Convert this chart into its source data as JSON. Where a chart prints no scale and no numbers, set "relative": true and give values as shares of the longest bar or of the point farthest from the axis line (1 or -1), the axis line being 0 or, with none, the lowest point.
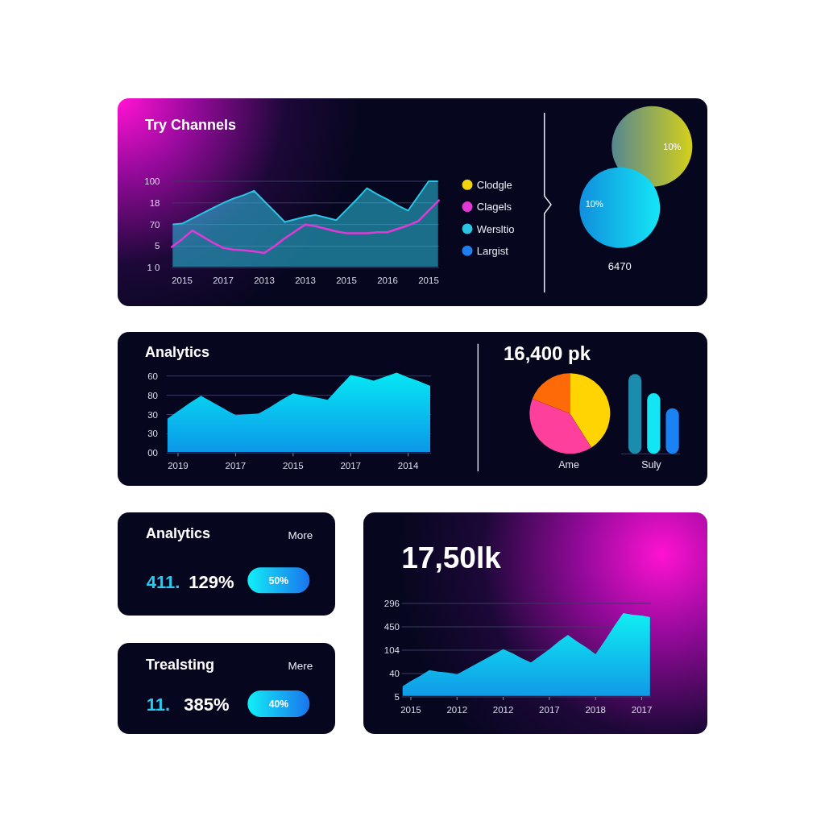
{
  "chart_data": [
    {
      "type": "area",
      "title": "Try Channels",
      "relative": true,
      "categories": [
        null,
        "2015",
        null,
        null,
        null,
        "2017",
        null,
        null,
        null,
        "2013",
        null,
        null,
        null,
        "2013",
        null,
        null,
        null,
        "2015",
        null,
        null,
        null,
        "2016",
        null,
        null,
        null,
        "2015",
        null
      ],
      "annotations": [
        "100",
        "18",
        "70",
        "5",
        "1 0"
      ],
      "legend": "right",
      "series": [
        {
          "name": "Clodgle",
          "color": "#f2d20f",
          "values": [
            null,
            null,
            null,
            null,
            null,
            null,
            null,
            null,
            null,
            null,
            null,
            null,
            null,
            null,
            null,
            null,
            null,
            null,
            null,
            null,
            null,
            null,
            null,
            null,
            null,
            null,
            null
          ]
        },
        {
          "name": "Clagels",
          "color": "#e03ad6",
          "type": "line",
          "values": [
            0.24,
            0.33,
            0.43,
            0.36,
            0.29,
            0.23,
            0.21,
            0.2,
            0.19,
            0.17,
            0.25,
            0.34,
            0.42,
            0.5,
            0.48,
            0.45,
            0.42,
            0.4,
            0.4,
            0.4,
            0.41,
            0.41,
            0.45,
            0.49,
            0.54,
            0.66,
            0.78
          ]
        },
        {
          "name": "Wersltio",
          "color": "#2cc4e4",
          "values": [
            0.5,
            0.51,
            0.57,
            0.63,
            0.69,
            0.75,
            0.8,
            0.84,
            0.89,
            0.77,
            0.65,
            0.53,
            0.56,
            0.59,
            0.61,
            0.58,
            0.55,
            0.67,
            0.79,
            0.92,
            0.85,
            0.79,
            0.72,
            0.66,
            0.83,
            1,
            1
          ]
        },
        {
          "name": "Largist",
          "color": "#1e7ef0",
          "values": [
            null,
            null,
            null,
            null,
            null,
            null,
            null,
            null,
            null,
            null,
            null,
            null,
            null,
            null,
            null,
            null,
            null,
            null,
            null,
            null,
            null,
            null,
            null,
            null,
            null,
            null,
            null
          ]
        }
      ]
    },
    {
      "type": "other",
      "values": [
        10,
        10
      ],
      "value_labels": [
        "10%",
        "10%"
      ],
      "colors": [
        "#d4d01a",
        "#14e6f6"
      ],
      "annotations": [
        "6470"
      ]
    },
    {
      "type": "area",
      "title": "Analytics",
      "relative": true,
      "categories": [
        null,
        "2019",
        null,
        null,
        null,
        null,
        "2017",
        null,
        null,
        null,
        null,
        "2015",
        null,
        null,
        null,
        null,
        "2017",
        null,
        null,
        null,
        null,
        "2014",
        null,
        null
      ],
      "values": [
        0.42,
        0.52,
        0.62,
        0.71,
        0.63,
        0.55,
        0.47,
        0.48,
        0.49,
        0.57,
        0.66,
        0.74,
        0.71,
        0.69,
        0.66,
        0.82,
        0.97,
        0.94,
        0.9,
        0.95,
        1,
        0.94,
        0.89,
        0.83
      ],
      "color": "#06e8f4",
      "annotations": [
        "60",
        "80",
        "30",
        "30",
        "00"
      ]
    },
    {
      "type": "pie",
      "title": "16,400 pk",
      "xlabel": "Ame",
      "categories": [
        null,
        null,
        null
      ],
      "values": [
        41,
        40,
        19
      ],
      "colors": [
        "#ffd400",
        "#ff3f9c",
        "#ff6a08"
      ]
    },
    {
      "type": "bar",
      "xlabel": "Suly",
      "categories": [
        null,
        null,
        null
      ],
      "values": [
        1,
        0.76,
        0.57
      ],
      "colors": [
        "#1b8cae",
        "#12e6f4",
        "#1a82f2"
      ],
      "relative": true
    },
    {
      "type": "other",
      "title": "Analytics",
      "annotations": [
        "More",
        "411.",
        "129%",
        "50%"
      ]
    },
    {
      "type": "other",
      "title": "Trealsting",
      "annotations": [
        "Mere",
        "11.",
        "385%",
        "40%"
      ]
    },
    {
      "type": "area",
      "title": "17,50lk",
      "relative": true,
      "categories": [
        null,
        "2015",
        null,
        null,
        null,
        null,
        "2012",
        null,
        null,
        null,
        null,
        "2012",
        null,
        null,
        null,
        null,
        "2017",
        null,
        null,
        null,
        null,
        "2018",
        null,
        null,
        null,
        null,
        "2017",
        null
      ],
      "values": [
        0.12,
        0.19,
        0.25,
        0.32,
        0.3,
        0.29,
        0.27,
        0.33,
        0.39,
        0.45,
        0.51,
        0.57,
        0.52,
        0.46,
        0.41,
        0.49,
        0.57,
        0.66,
        0.74,
        0.66,
        0.59,
        0.51,
        0.67,
        0.84,
        1,
        0.98,
        0.97,
        0.95
      ],
      "color": "#10eef2",
      "annotations": [
        "296",
        "450",
        "104",
        "40",
        "5"
      ]
    }
  ]
}
